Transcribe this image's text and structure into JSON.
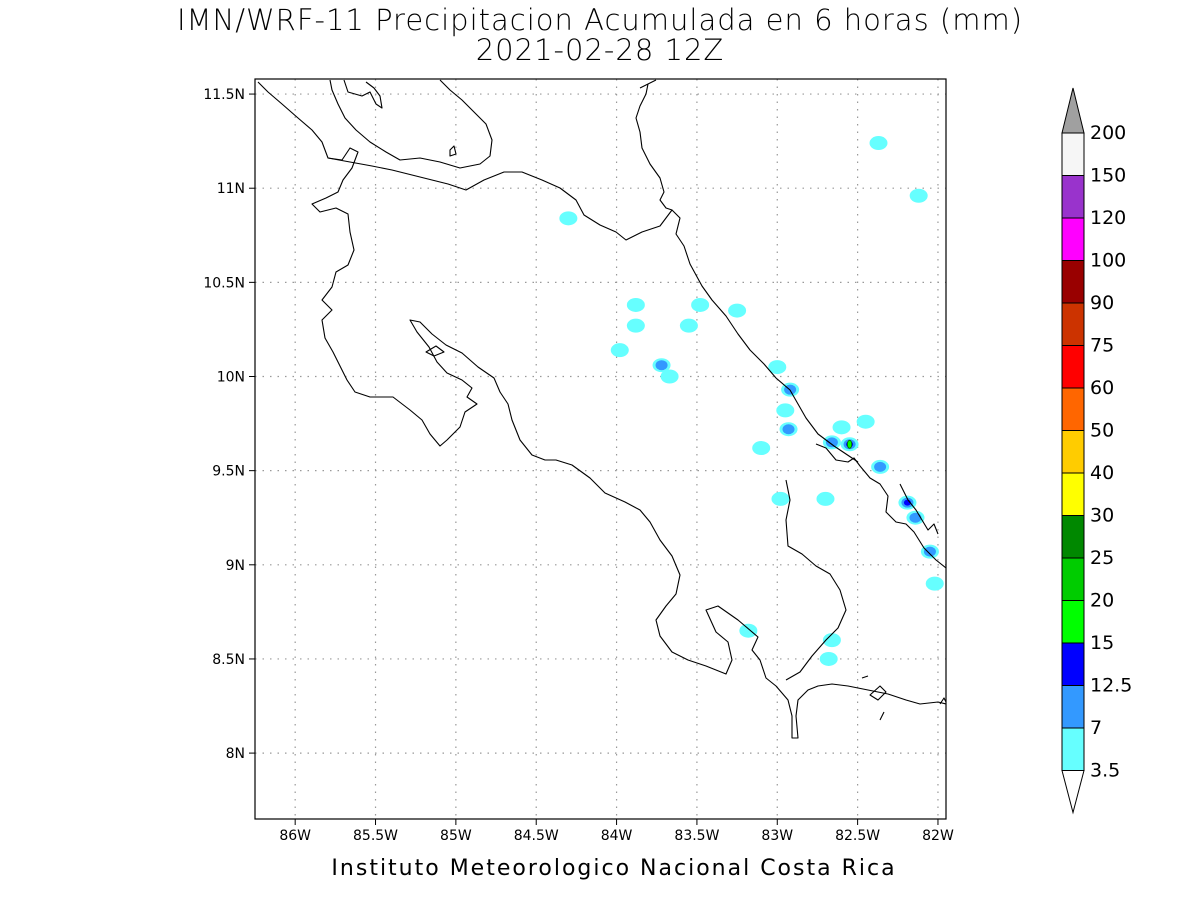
{
  "title": "IMN/WRF-11 Precipitacion Acumulada en 6 horas (mm)",
  "subtitle": "2021-02-28 12Z",
  "footer": "Instituto Meteorologico Nacional Costa Rica",
  "map": {
    "lon_range": [
      -86.25,
      -81.95
    ],
    "lat_range": [
      7.65,
      11.58
    ],
    "lat_ticks": [
      {
        "value": 11.5,
        "label": "11.5N"
      },
      {
        "value": 11.0,
        "label": "11N"
      },
      {
        "value": 10.5,
        "label": "10.5N"
      },
      {
        "value": 10.0,
        "label": "10N"
      },
      {
        "value": 9.5,
        "label": "9.5N"
      },
      {
        "value": 9.0,
        "label": "9N"
      },
      {
        "value": 8.5,
        "label": "8.5N"
      },
      {
        "value": 8.0,
        "label": "8N"
      }
    ],
    "lon_ticks": [
      {
        "value": -86.0,
        "label": "86W"
      },
      {
        "value": -85.5,
        "label": "85.5W"
      },
      {
        "value": -85.0,
        "label": "85W"
      },
      {
        "value": -84.5,
        "label": "84.5W"
      },
      {
        "value": -84.0,
        "label": "84W"
      },
      {
        "value": -83.5,
        "label": "83.5W"
      },
      {
        "value": -83.0,
        "label": "83W"
      },
      {
        "value": -82.5,
        "label": "82.5W"
      },
      {
        "value": -82.0,
        "label": "82W"
      }
    ],
    "grid": true
  },
  "colorbar": {
    "levels": [
      {
        "label": "200",
        "color": "#ffffff"
      },
      {
        "label": "150",
        "color": "#f2f2f2"
      },
      {
        "label": "120",
        "color": "#9933cc"
      },
      {
        "label": "100",
        "color": "#ff00ff"
      },
      {
        "label": "90",
        "color": "#990000"
      },
      {
        "label": "75",
        "color": "#cc3300"
      },
      {
        "label": "60",
        "color": "#ff0000"
      },
      {
        "label": "50",
        "color": "#ff6600"
      },
      {
        "label": "40",
        "color": "#ffcc00"
      },
      {
        "label": "30",
        "color": "#ffff00"
      },
      {
        "label": "25",
        "color": "#008800"
      },
      {
        "label": "20",
        "color": "#00cc00"
      },
      {
        "label": "15",
        "color": "#00ff00"
      },
      {
        "label": "12.5",
        "color": "#0000ff"
      },
      {
        "label": "7",
        "color": "#3399ff"
      },
      {
        "label": "3.5",
        "color": "#66ffff"
      }
    ],
    "top_arrow_color": "#a0a0a0",
    "bottom_arrow_color": "#ffffff"
  },
  "precip_cells": [
    {
      "lon": -84.3,
      "lat": 10.84,
      "level": 3.5
    },
    {
      "lon": -83.88,
      "lat": 10.38,
      "level": 3.5
    },
    {
      "lon": -83.88,
      "lat": 10.27,
      "level": 3.5
    },
    {
      "lon": -83.48,
      "lat": 10.38,
      "level": 3.5
    },
    {
      "lon": -83.25,
      "lat": 10.35,
      "level": 3.5
    },
    {
      "lon": -83.55,
      "lat": 10.27,
      "level": 3.5
    },
    {
      "lon": -83.98,
      "lat": 10.14,
      "level": 3.5
    },
    {
      "lon": -83.72,
      "lat": 10.06,
      "level": 7
    },
    {
      "lon": -83.67,
      "lat": 10.0,
      "level": 3.5
    },
    {
      "lon": -82.37,
      "lat": 11.24,
      "level": 3.5
    },
    {
      "lon": -82.12,
      "lat": 10.96,
      "level": 3.5
    },
    {
      "lon": -83.0,
      "lat": 10.05,
      "level": 3.5
    },
    {
      "lon": -82.92,
      "lat": 9.93,
      "level": 7
    },
    {
      "lon": -82.95,
      "lat": 9.82,
      "level": 3.5
    },
    {
      "lon": -82.93,
      "lat": 9.72,
      "level": 7
    },
    {
      "lon": -83.1,
      "lat": 9.62,
      "level": 3.5
    },
    {
      "lon": -82.55,
      "lat": 9.64,
      "level": 15
    },
    {
      "lon": -82.66,
      "lat": 9.65,
      "level": 7
    },
    {
      "lon": -82.6,
      "lat": 9.73,
      "level": 3.5
    },
    {
      "lon": -82.45,
      "lat": 9.76,
      "level": 3.5
    },
    {
      "lon": -82.36,
      "lat": 9.52,
      "level": 7
    },
    {
      "lon": -82.19,
      "lat": 9.33,
      "level": 12.5
    },
    {
      "lon": -82.14,
      "lat": 9.25,
      "level": 7
    },
    {
      "lon": -82.05,
      "lat": 9.07,
      "level": 7
    },
    {
      "lon": -82.02,
      "lat": 8.9,
      "level": 3.5
    },
    {
      "lon": -82.98,
      "lat": 9.35,
      "level": 3.5
    },
    {
      "lon": -82.7,
      "lat": 9.35,
      "level": 3.5
    },
    {
      "lon": -83.18,
      "lat": 8.65,
      "level": 3.5
    },
    {
      "lon": -82.66,
      "lat": 8.6,
      "level": 3.5
    },
    {
      "lon": -82.68,
      "lat": 8.5,
      "level": 3.5
    }
  ]
}
